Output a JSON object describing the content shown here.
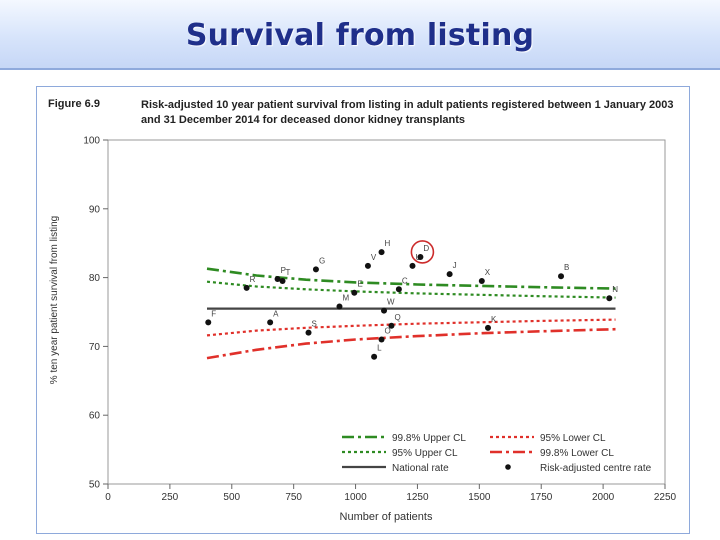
{
  "slide": {
    "title": "Survival from listing"
  },
  "figure": {
    "label": "Figure 6.9",
    "caption": "Risk-adjusted 10 year patient survival from listing in adult patients registered between 1 January 2003 and 31 December 2014 for deceased donor kidney transplants"
  },
  "chart_data": {
    "type": "scatter",
    "xlabel": "Number of patients",
    "ylabel": "% ten year patient survival from listing",
    "xlim": [
      0,
      2250
    ],
    "ylim": [
      50,
      100
    ],
    "xticks": [
      0,
      250,
      500,
      750,
      1000,
      1250,
      1500,
      1750,
      2000,
      2250
    ],
    "yticks": [
      50,
      60,
      70,
      80,
      90,
      100
    ],
    "national_rate": 75.5,
    "grid": false,
    "legend_position": "bottom-right",
    "legend": [
      {
        "key": "upper998",
        "label": "99.8% Upper CL"
      },
      {
        "key": "lower95",
        "label": "95% Lower CL"
      },
      {
        "key": "upper95",
        "label": "95% Upper CL"
      },
      {
        "key": "lower998",
        "label": "99.8% Lower CL"
      },
      {
        "key": "national",
        "label": "National rate"
      },
      {
        "key": "centre",
        "label": "Risk-adjusted centre rate"
      }
    ],
    "colors": {
      "upper998": "#2e8b22",
      "upper95": "#2e8b22",
      "lower95": "#e0302a",
      "lower998": "#e0302a",
      "national": "#444444",
      "points": "#111111",
      "highlight": "#cc2b2b"
    },
    "limits_x": [
      400,
      600,
      800,
      1000,
      1250,
      1500,
      1750,
      2050
    ],
    "upper998": [
      81.3,
      80.3,
      79.7,
      79.3,
      79.0,
      78.8,
      78.6,
      78.4
    ],
    "upper95": [
      79.4,
      78.7,
      78.3,
      78.0,
      77.7,
      77.5,
      77.3,
      77.1
    ],
    "lower95": [
      71.6,
      72.3,
      72.7,
      73.0,
      73.3,
      73.5,
      73.7,
      73.9
    ],
    "lower998": [
      68.3,
      69.5,
      70.4,
      71.0,
      71.5,
      71.9,
      72.2,
      72.5
    ],
    "national_x": [
      400,
      2050
    ],
    "highlight_label": "D",
    "points": [
      {
        "label": "F",
        "x": 405,
        "y": 73.5
      },
      {
        "label": "R",
        "x": 560,
        "y": 78.5
      },
      {
        "label": "A",
        "x": 655,
        "y": 73.5
      },
      {
        "label": "P",
        "x": 685,
        "y": 79.8
      },
      {
        "label": "T",
        "x": 705,
        "y": 79.5
      },
      {
        "label": "S",
        "x": 810,
        "y": 72.0
      },
      {
        "label": "G",
        "x": 840,
        "y": 81.2
      },
      {
        "label": "M",
        "x": 935,
        "y": 75.8
      },
      {
        "label": "E",
        "x": 995,
        "y": 77.8
      },
      {
        "label": "V",
        "x": 1050,
        "y": 81.7
      },
      {
        "label": "L",
        "x": 1075,
        "y": 68.5
      },
      {
        "label": "H",
        "x": 1105,
        "y": 83.7
      },
      {
        "label": "O",
        "x": 1105,
        "y": 71.0
      },
      {
        "label": "W",
        "x": 1115,
        "y": 75.2
      },
      {
        "label": "Q",
        "x": 1145,
        "y": 73.0
      },
      {
        "label": "C",
        "x": 1175,
        "y": 78.3
      },
      {
        "label": "U",
        "x": 1230,
        "y": 81.7
      },
      {
        "label": "D",
        "x": 1262,
        "y": 83.0
      },
      {
        "label": "J",
        "x": 1380,
        "y": 80.5
      },
      {
        "label": "X",
        "x": 1510,
        "y": 79.5
      },
      {
        "label": "K",
        "x": 1535,
        "y": 72.7
      },
      {
        "label": "B",
        "x": 1830,
        "y": 80.2
      },
      {
        "label": "N",
        "x": 2025,
        "y": 77.0
      }
    ]
  }
}
